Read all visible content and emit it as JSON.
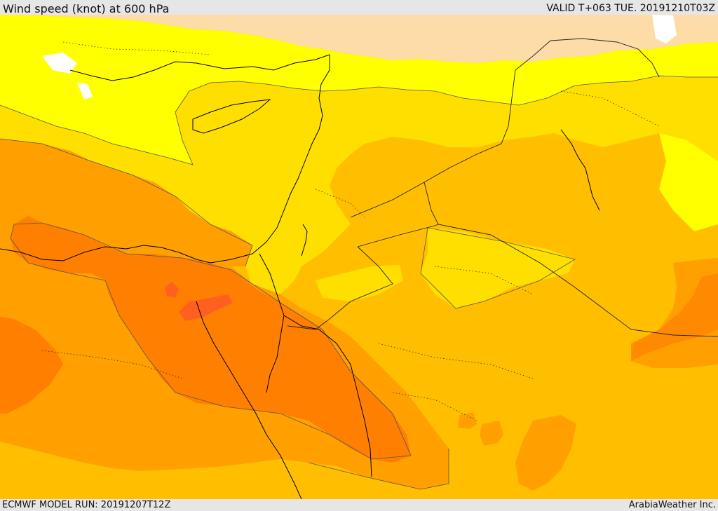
{
  "header": {
    "title": "Wind speed (knot) at 600 hPa",
    "valid": "VALID T+063 TUE. 20191210T03Z"
  },
  "footer": {
    "model_run": "ECMWF MODEL RUN: 20191207T12Z",
    "brand": "ArabiaWeather Inc."
  },
  "colors": {
    "sea": "#ffffff",
    "band_peach": "#fddca8",
    "band_yellow": "#ffff00",
    "band_gold": "#ffdf00",
    "band_amber": "#ffbf00",
    "band_orange": "#ffa000",
    "band_dark_orange": "#ff7f00",
    "band_red_orange": "#ff5f1f",
    "coastline": "#000000",
    "border": "#333333"
  }
}
